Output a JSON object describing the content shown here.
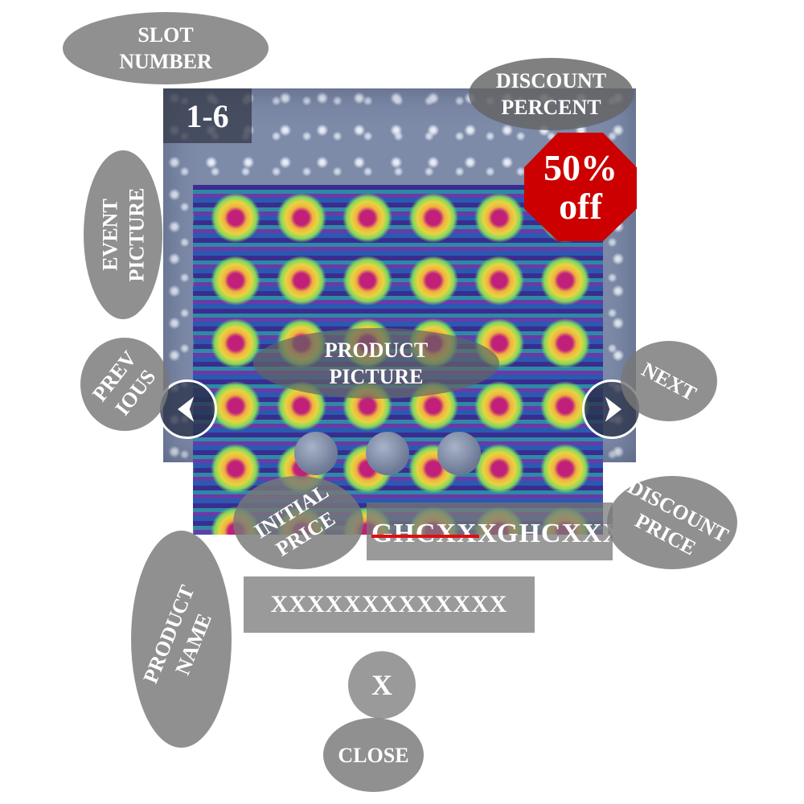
{
  "slot": {
    "number": "1-6",
    "callout": "SLOT\nNUMBER"
  },
  "discount": {
    "percent": "50%",
    "suffix": "off",
    "callout": "DISCOUNT\nPERCENT",
    "badge_color": "#cc0000"
  },
  "event": {
    "callout": "EVENT\nPICTURE"
  },
  "product": {
    "callout": "PRODUCT\nPICTURE",
    "name": "XXXXXXXXXXXXX",
    "name_callout": "PRODUCT\nNAME"
  },
  "navigation": {
    "previous_callout": "PREV\nIOUS",
    "next_callout": "NEXT",
    "previous_icon": "chevron-left-icon",
    "next_icon": "chevron-right-icon"
  },
  "pager": {
    "dots": 3
  },
  "price": {
    "initial": "GHCXXX",
    "initial_callout": "INITIAL\nPRICE",
    "strike_color": "#dd1010",
    "discounted": "GHCXXX",
    "discounted_callout": "DISCOUNT\nPRICE"
  },
  "close": {
    "label": "X",
    "callout": "CLOSE"
  }
}
